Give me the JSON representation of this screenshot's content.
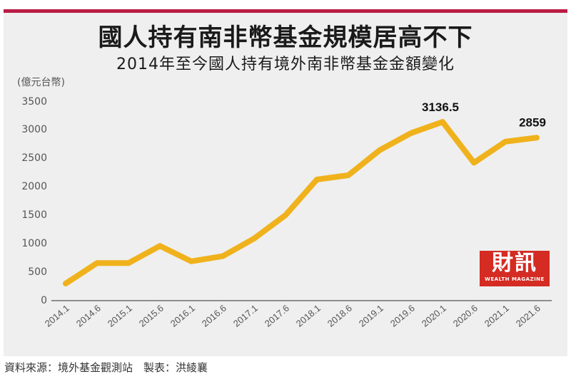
{
  "header": {
    "title": "國人持有南非幣基金規模居高不下",
    "subtitle": "2014年至今國人持有境外南非幣基金金額變化"
  },
  "colors": {
    "topbar": "#b81c45",
    "line": "#f0b21c",
    "panel": "#efefef",
    "logo_bg": "#d42b23"
  },
  "chart_data": {
    "type": "line",
    "title": "國人持有南非幣基金規模居高不下",
    "subtitle": "2014年至今國人持有境外南非幣基金金額變化",
    "xlabel": "",
    "ylabel": "(億元台幣)",
    "ylim": [
      0,
      3500
    ],
    "yticks": [
      0,
      500,
      1000,
      1500,
      2000,
      2500,
      3000,
      3500
    ],
    "grid": false,
    "categories": [
      "2014.1",
      "2014.6",
      "2015.1",
      "2015.6",
      "2016.1",
      "2016.6",
      "2017.1",
      "2017.6",
      "2018.1",
      "2018.6",
      "2019.1",
      "2019.6",
      "2020.1",
      "2020.6",
      "2021.1",
      "2021.6"
    ],
    "series": [
      {
        "name": "國人持有境外南非幣基金金額",
        "values": [
          300,
          660,
          660,
          960,
          690,
          780,
          1090,
          1500,
          2125,
          2200,
          2640,
          2940,
          3136.5,
          2420,
          2790,
          2859
        ]
      }
    ],
    "annotations": [
      {
        "category": "2020.1",
        "label": "3136.5"
      },
      {
        "category": "2021.6",
        "label": "2859"
      }
    ]
  },
  "axis": {
    "unit_label": "(億元台幣)",
    "y_labels": [
      "3500",
      "3000",
      "2500",
      "2000",
      "1500",
      "1000",
      "500",
      "0"
    ]
  },
  "annotations": {
    "peak": "3136.5",
    "latest": "2859"
  },
  "logo": {
    "main": "財訊",
    "sub": "WEALTH MAGAZINE"
  },
  "footer": {
    "source": "資料來源：境外基金觀測站　製表：洪綾襄"
  }
}
